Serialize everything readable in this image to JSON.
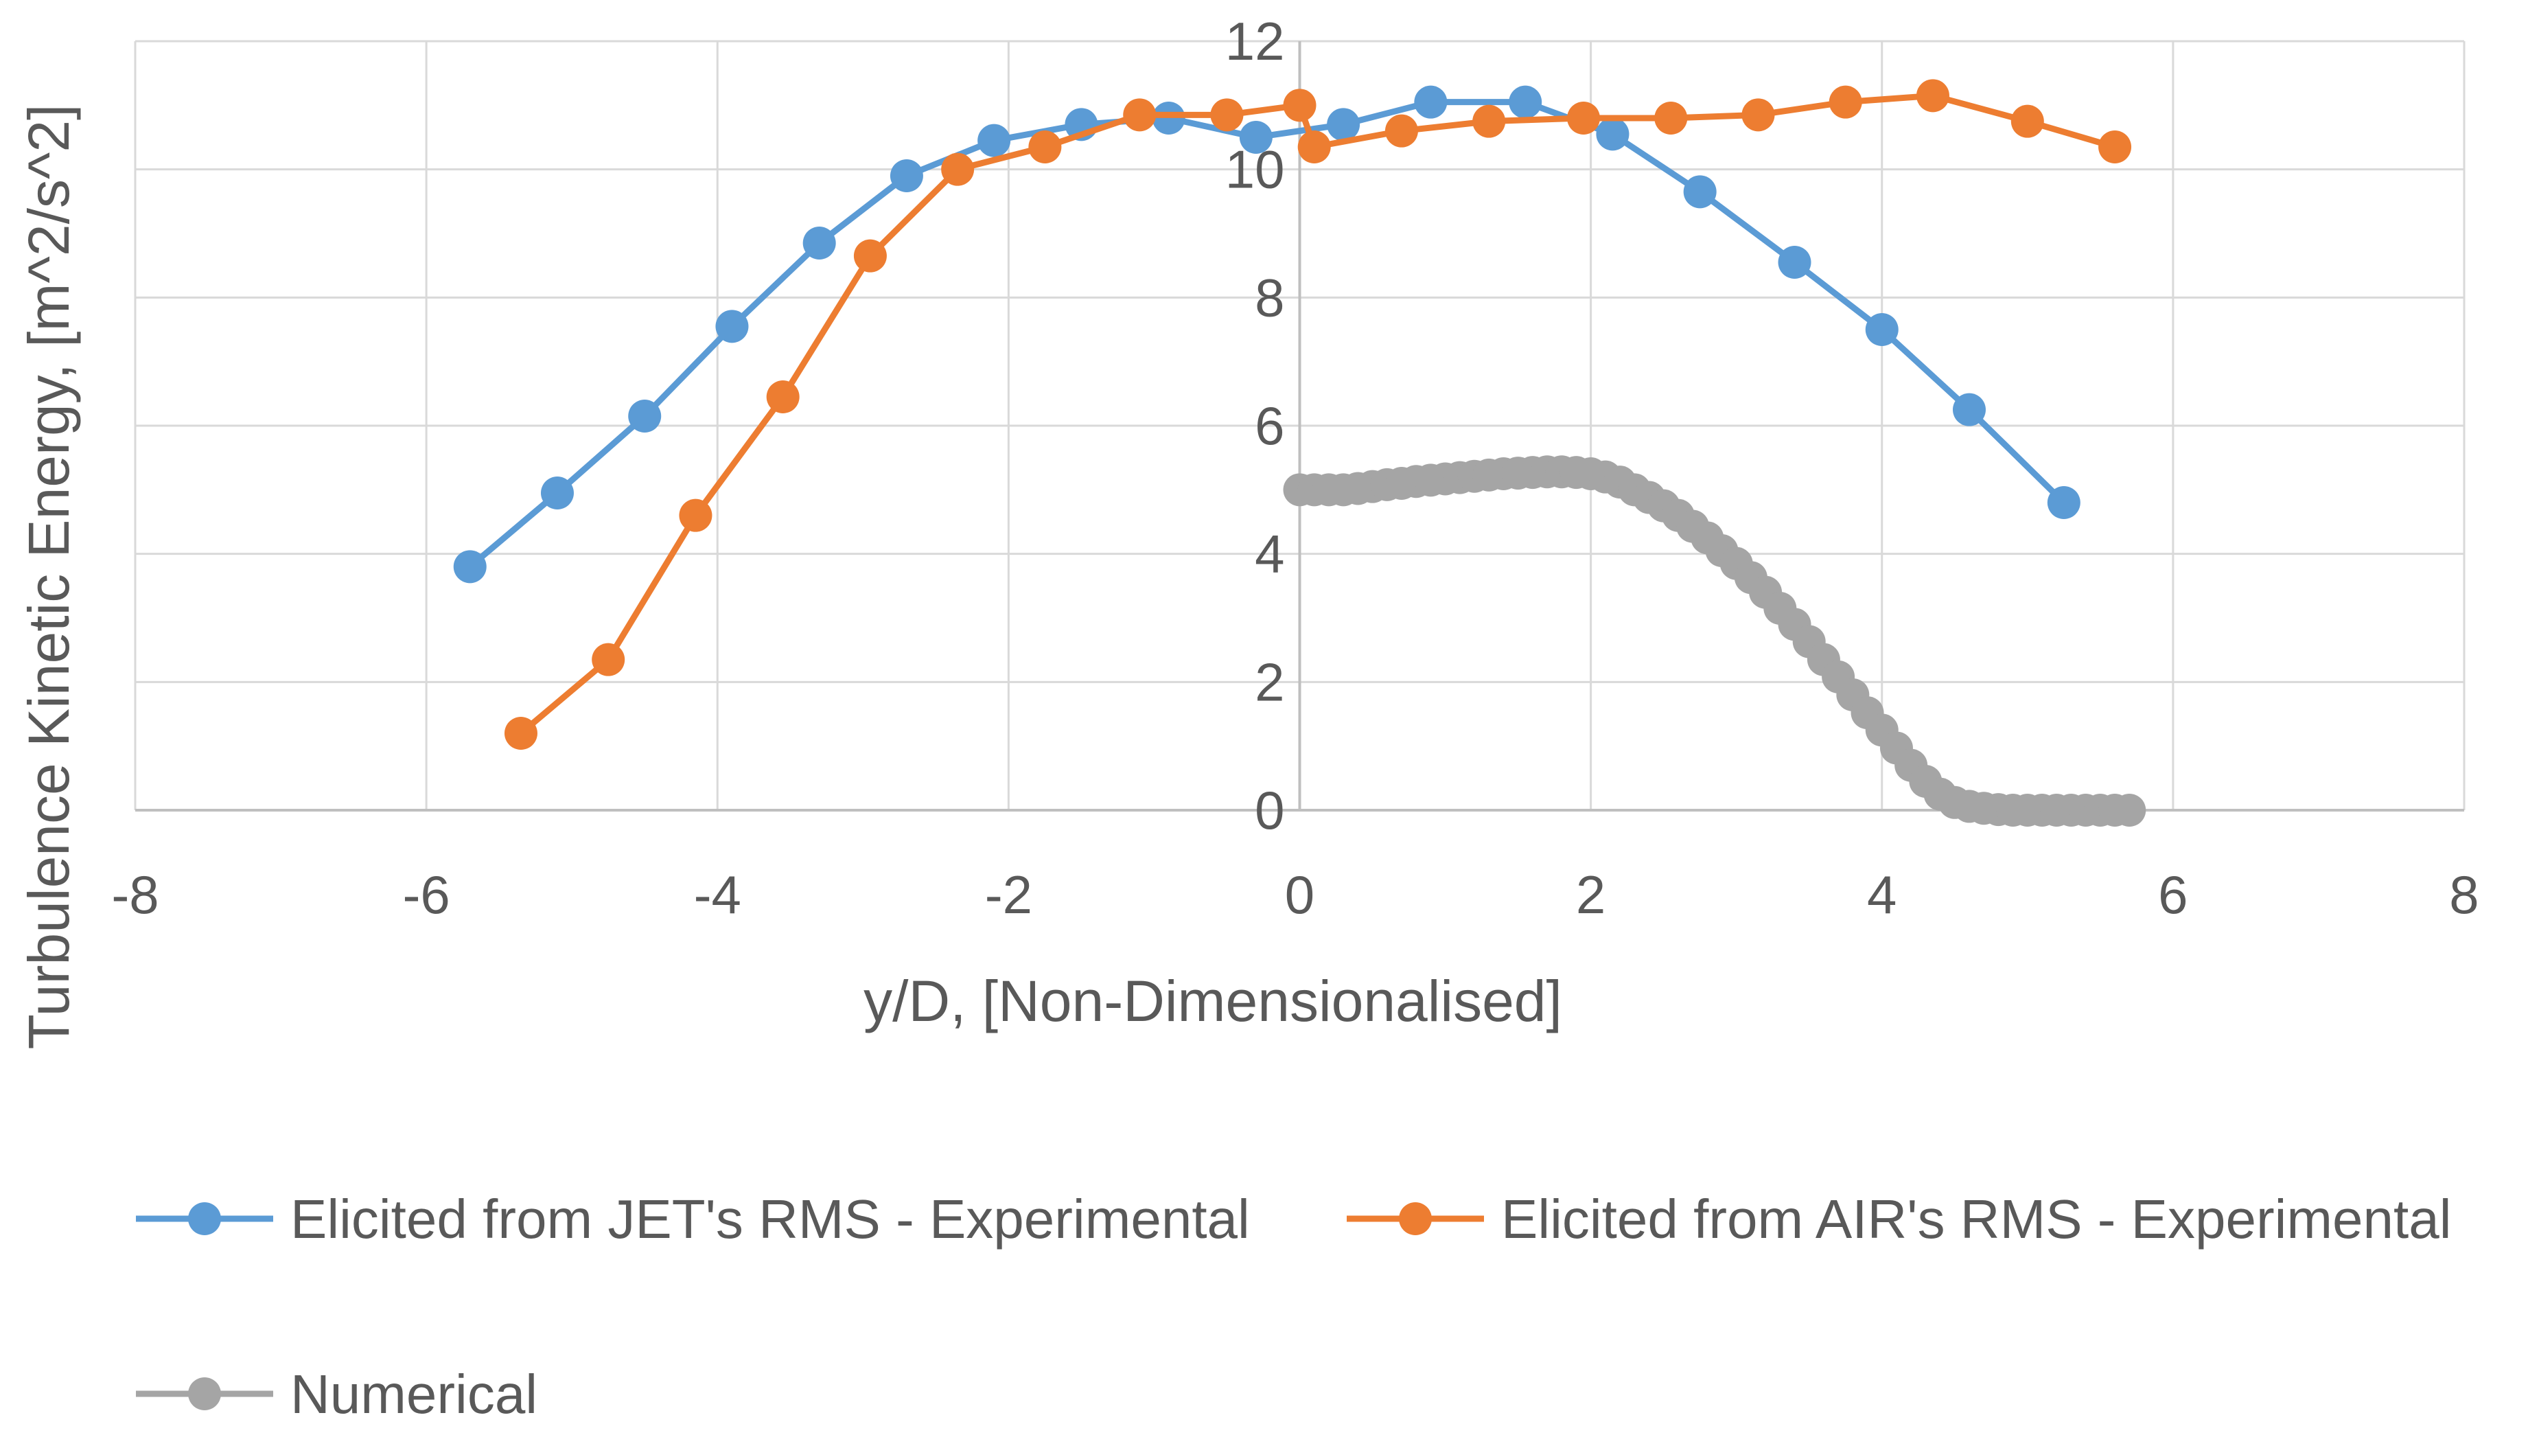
{
  "chart_data": {
    "type": "line",
    "title": "",
    "xlabel": "y/D, [Non-Dimensionalised]",
    "ylabel": "Turbulence Kinetic Energy, [m^2/s^2]",
    "xlim": [
      -8,
      8
    ],
    "ylim": [
      0,
      12
    ],
    "x_ticks": [
      -8,
      -6,
      -4,
      -2,
      0,
      2,
      4,
      6,
      8
    ],
    "y_ticks": [
      0,
      2,
      4,
      6,
      8,
      10,
      12
    ],
    "grid": true,
    "legend_position": "bottom",
    "series": [
      {
        "name": "Elicited from JET's RMS - Experimental",
        "color": "#5B9BD5",
        "marker": "circle",
        "x": [
          -5.7,
          -5.1,
          -4.5,
          -3.9,
          -3.3,
          -2.7,
          -2.1,
          -1.5,
          -0.9,
          -0.3,
          0.3,
          0.9,
          1.55,
          2.15,
          2.75,
          3.4,
          4.0,
          4.6,
          5.25
        ],
        "y": [
          3.8,
          4.95,
          6.15,
          7.55,
          8.85,
          9.9,
          10.45,
          10.7,
          10.8,
          10.5,
          10.7,
          11.05,
          11.05,
          10.55,
          9.65,
          8.55,
          7.5,
          6.25,
          4.8
        ]
      },
      {
        "name": "Elicited from AIR's RMS - Experimental",
        "color": "#ED7D31",
        "marker": "circle",
        "x": [
          -5.35,
          -4.75,
          -4.15,
          -3.55,
          -2.95,
          -2.35,
          -1.75,
          -1.1,
          -0.5,
          0.0,
          0.1,
          0.7,
          1.3,
          1.95,
          2.55,
          3.15,
          3.75,
          4.35,
          5.0,
          5.6
        ],
        "y": [
          1.2,
          2.35,
          4.6,
          6.45,
          8.65,
          10.0,
          10.35,
          10.85,
          10.85,
          11.0,
          10.35,
          10.6,
          10.75,
          10.8,
          10.8,
          10.85,
          11.05,
          11.15,
          10.75,
          10.35
        ]
      },
      {
        "name": "Numerical",
        "color": "#A5A5A5",
        "marker": "circle",
        "x": [
          0.0,
          0.1,
          0.2,
          0.3,
          0.4,
          0.5,
          0.6,
          0.7,
          0.8,
          0.9,
          1.0,
          1.1,
          1.2,
          1.3,
          1.4,
          1.5,
          1.6,
          1.7,
          1.8,
          1.9,
          2.0,
          2.1,
          2.2,
          2.3,
          2.4,
          2.5,
          2.6,
          2.7,
          2.8,
          2.9,
          3.0,
          3.1,
          3.2,
          3.3,
          3.4,
          3.5,
          3.6,
          3.7,
          3.8,
          3.9,
          4.0,
          4.1,
          4.2,
          4.3,
          4.4,
          4.5,
          4.6,
          4.7,
          4.8,
          4.9,
          5.0,
          5.1,
          5.2,
          5.3,
          5.4,
          5.5,
          5.6,
          5.7
        ],
        "y": [
          5.0,
          5.0,
          5.0,
          5.0,
          5.02,
          5.05,
          5.08,
          5.1,
          5.13,
          5.15,
          5.17,
          5.19,
          5.21,
          5.23,
          5.25,
          5.26,
          5.27,
          5.28,
          5.28,
          5.27,
          5.25,
          5.2,
          5.12,
          5.0,
          4.88,
          4.75,
          4.6,
          4.43,
          4.25,
          4.05,
          3.85,
          3.63,
          3.4,
          3.15,
          2.9,
          2.63,
          2.35,
          2.08,
          1.8,
          1.52,
          1.25,
          0.97,
          0.7,
          0.45,
          0.25,
          0.12,
          0.06,
          0.03,
          0.01,
          0.0,
          0.0,
          0.0,
          0.0,
          0.0,
          0.0,
          0.0,
          0.0,
          0.0
        ]
      }
    ]
  }
}
